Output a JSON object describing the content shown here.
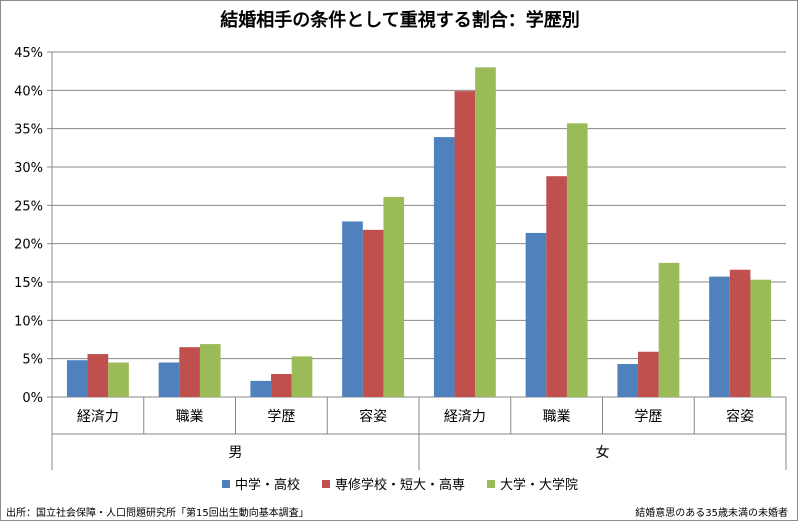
{
  "chart_data": {
    "type": "bar",
    "title": "結婚相手の条件として重視する割合：学歴別",
    "groups": [
      {
        "label": "男",
        "categories": [
          "経済力",
          "職業",
          "学歴",
          "容姿"
        ]
      },
      {
        "label": "女",
        "categories": [
          "経済力",
          "職業",
          "学歴",
          "容姿"
        ]
      }
    ],
    "series": [
      {
        "name": "中学・高校",
        "color": "#4f81bd",
        "values": [
          4.8,
          4.5,
          2.1,
          22.9,
          33.9,
          21.4,
          4.3,
          15.7
        ]
      },
      {
        "name": "専修学校・短大・高専",
        "color": "#c0504d",
        "values": [
          5.6,
          6.5,
          3.0,
          21.8,
          39.9,
          28.8,
          5.9,
          16.6
        ]
      },
      {
        "name": "大学・大学院",
        "color": "#9bbb59",
        "values": [
          4.5,
          6.9,
          5.3,
          26.1,
          43.0,
          35.7,
          17.5,
          15.3
        ]
      }
    ],
    "yticks": [
      "0%",
      "5%",
      "10%",
      "15%",
      "20%",
      "25%",
      "30%",
      "35%",
      "40%",
      "45%"
    ],
    "ylim": [
      0,
      45
    ],
    "grid": true,
    "legend_position": "bottom"
  },
  "footer": {
    "source": "出所：国立社会保障・人口問題研究所「第15回出生動向基本調査」",
    "subject": "結婚意思のある35歳未満の未婚者"
  }
}
